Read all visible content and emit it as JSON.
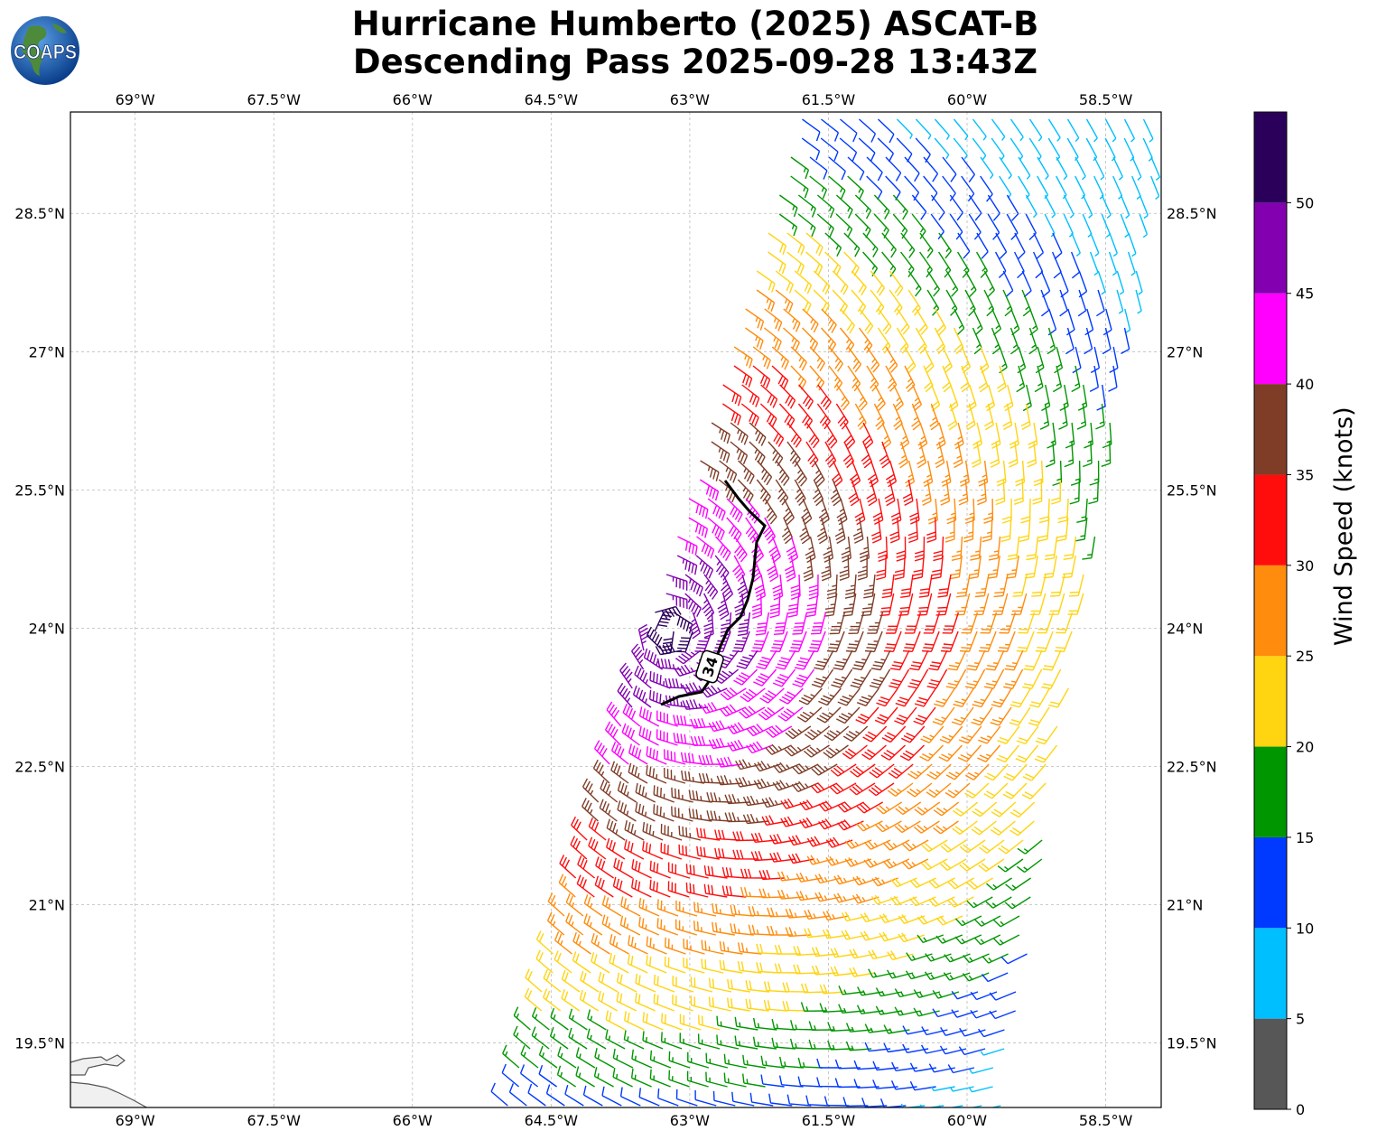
{
  "title": {
    "line1": "Hurricane Humberto (2025) ASCAT-B",
    "line2": "Descending Pass 2025-09-28 13:43Z"
  },
  "logo": {
    "text": "COAPS",
    "icon": "globe-icon"
  },
  "map": {
    "lon_range": [
      -69.7,
      -57.9
    ],
    "lat_range": [
      18.8,
      29.6
    ],
    "lon_ticks": [
      "69°W",
      "67.5°W",
      "66°W",
      "64.5°W",
      "63°W",
      "61.5°W",
      "60°W",
      "58.5°W"
    ],
    "lat_ticks": [
      "28.5°N",
      "27°N",
      "25.5°N",
      "24°N",
      "22.5°N",
      "21°N",
      "19.5°N"
    ],
    "grid": true,
    "contour_label": "34",
    "contour_knots": 34
  },
  "colorbar": {
    "label": "Wind Speed (knots)",
    "ticks": [
      "0",
      "5",
      "10",
      "15",
      "20",
      "25",
      "30",
      "35",
      "40",
      "45",
      "50"
    ],
    "bins": [
      {
        "from": 0,
        "to": 5,
        "color": "#575757"
      },
      {
        "from": 5,
        "to": 10,
        "color": "#00bfff"
      },
      {
        "from": 10,
        "to": 15,
        "color": "#0039ff"
      },
      {
        "from": 15,
        "to": 20,
        "color": "#009600"
      },
      {
        "from": 20,
        "to": 25,
        "color": "#ffd411"
      },
      {
        "from": 25,
        "to": 30,
        "color": "#ff8c0d"
      },
      {
        "from": 30,
        "to": 35,
        "color": "#ff0d0d"
      },
      {
        "from": 35,
        "to": 40,
        "color": "#7f3d27"
      },
      {
        "from": 40,
        "to": 45,
        "color": "#ff00ff"
      },
      {
        "from": 45,
        "to": 50,
        "color": "#8300b0"
      },
      {
        "from": 50,
        "to": 55,
        "color": "#2b005a"
      }
    ]
  }
}
